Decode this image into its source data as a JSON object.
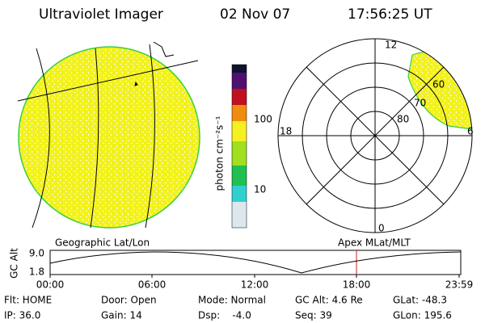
{
  "header": {
    "title": "Ultraviolet Imager",
    "date": "02 Nov 07",
    "time": "17:56:25 UT"
  },
  "colorbar": {
    "label": "photon cm⁻²s⁻¹",
    "ticks": [
      "100",
      "10"
    ]
  },
  "polar": {
    "mlt_labels": [
      "12",
      "18",
      "6",
      "0"
    ],
    "mlat_labels": [
      "80",
      "70",
      "60"
    ]
  },
  "altitude_plot": {
    "left_label": "Geographic Lat/Lon",
    "right_label": "Apex MLat/MLT",
    "y_label": "GC Alt",
    "y_ticks": [
      "9.0",
      "1.8"
    ],
    "x_ticks": [
      "00:00",
      "06:00",
      "12:00",
      "18:00",
      "23:59"
    ]
  },
  "status": {
    "rows": [
      [
        "Flt: HOME",
        "Door: Open",
        "Mode: Normal",
        "GC Alt: 4.6 Re",
        "GLat: -48.3"
      ],
      [
        "IP: 36.0",
        "Gain: 14",
        "Dsp:    -4.0",
        "Seq: 39",
        "GLon: 195.6"
      ]
    ]
  }
}
